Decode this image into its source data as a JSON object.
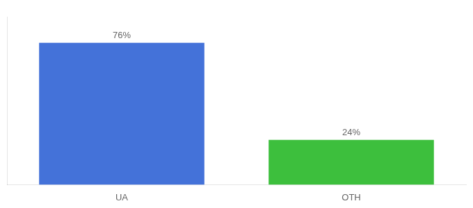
{
  "chart_data": {
    "type": "bar",
    "categories": [
      "UA",
      "OTH"
    ],
    "values": [
      76,
      24
    ],
    "colors": [
      "#4472d9",
      "#3dbf3d"
    ],
    "value_labels": [
      "76%",
      "24%"
    ],
    "data_labels": true,
    "ylim": [
      0,
      90
    ],
    "tick_labels": "x",
    "grid": false
  }
}
